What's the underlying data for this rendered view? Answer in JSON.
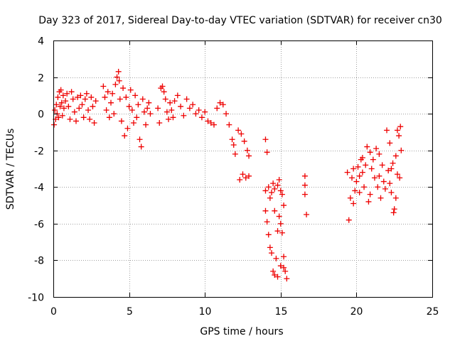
{
  "chart_data": {
    "type": "scatter",
    "title": "Day 323 of 2017, Sidereal Day-to-day VTEC variation (SDTVAR) for receiver cn30",
    "xlabel": "GPS time / hours",
    "ylabel": "SDTVAR / TECUs",
    "xlim": [
      0,
      25
    ],
    "ylim": [
      -10,
      4
    ],
    "xticks": [
      "0",
      "5",
      "10",
      "15",
      "20",
      "25"
    ],
    "yticks": [
      "4",
      "2",
      "0",
      "-2",
      "-4",
      "-6",
      "-8",
      "-10"
    ],
    "grid": true,
    "marker": "+",
    "color": "#ee0000",
    "series": [
      {
        "name": "SDTVAR",
        "points": [
          [
            0.05,
            -0.6
          ],
          [
            0.1,
            0.2
          ],
          [
            0.15,
            -0.3
          ],
          [
            0.2,
            0.5
          ],
          [
            0.25,
            0.0
          ],
          [
            0.3,
            0.9
          ],
          [
            0.35,
            -0.2
          ],
          [
            0.4,
            1.2
          ],
          [
            0.45,
            0.4
          ],
          [
            0.5,
            1.3
          ],
          [
            0.55,
            0.6
          ],
          [
            0.6,
            -0.1
          ],
          [
            0.65,
            1.0
          ],
          [
            0.7,
            0.3
          ],
          [
            0.8,
            0.7
          ],
          [
            0.9,
            1.1
          ],
          [
            1.0,
            0.4
          ],
          [
            1.1,
            -0.3
          ],
          [
            1.2,
            1.2
          ],
          [
            1.3,
            0.8
          ],
          [
            1.4,
            0.1
          ],
          [
            1.5,
            -0.4
          ],
          [
            1.6,
            0.9
          ],
          [
            1.7,
            0.3
          ],
          [
            1.8,
            1.0
          ],
          [
            1.9,
            0.5
          ],
          [
            2.0,
            -0.2
          ],
          [
            2.1,
            0.8
          ],
          [
            2.2,
            1.1
          ],
          [
            2.3,
            0.2
          ],
          [
            2.4,
            -0.3
          ],
          [
            2.5,
            0.9
          ],
          [
            2.6,
            0.4
          ],
          [
            2.7,
            -0.5
          ],
          [
            2.8,
            0.7
          ],
          [
            3.3,
            1.5
          ],
          [
            3.4,
            0.9
          ],
          [
            3.5,
            0.2
          ],
          [
            3.6,
            1.2
          ],
          [
            3.7,
            -0.2
          ],
          [
            3.8,
            0.6
          ],
          [
            3.9,
            1.1
          ],
          [
            4.0,
            0.0
          ],
          [
            4.1,
            1.6
          ],
          [
            4.2,
            2.0
          ],
          [
            4.3,
            2.3
          ],
          [
            4.35,
            1.8
          ],
          [
            4.4,
            0.8
          ],
          [
            4.5,
            -0.4
          ],
          [
            4.6,
            1.4
          ],
          [
            4.7,
            -1.2
          ],
          [
            4.8,
            0.9
          ],
          [
            4.9,
            -0.8
          ],
          [
            5.0,
            0.4
          ],
          [
            5.1,
            1.3
          ],
          [
            5.2,
            0.2
          ],
          [
            5.3,
            -0.5
          ],
          [
            5.4,
            1.0
          ],
          [
            5.5,
            -0.2
          ],
          [
            5.6,
            0.5
          ],
          [
            5.7,
            -1.4
          ],
          [
            5.8,
            -1.8
          ],
          [
            5.9,
            0.8
          ],
          [
            6.0,
            0.1
          ],
          [
            6.1,
            -0.6
          ],
          [
            6.2,
            0.3
          ],
          [
            6.3,
            0.6
          ],
          [
            6.4,
            0.0
          ],
          [
            6.9,
            0.3
          ],
          [
            7.0,
            -0.5
          ],
          [
            7.1,
            1.4
          ],
          [
            7.2,
            1.5
          ],
          [
            7.3,
            1.2
          ],
          [
            7.4,
            0.8
          ],
          [
            7.5,
            0.1
          ],
          [
            7.6,
            -0.3
          ],
          [
            7.7,
            0.6
          ],
          [
            7.8,
            0.2
          ],
          [
            7.9,
            -0.2
          ],
          [
            8.0,
            0.7
          ],
          [
            8.2,
            1.0
          ],
          [
            8.4,
            0.4
          ],
          [
            8.6,
            -0.1
          ],
          [
            8.8,
            0.8
          ],
          [
            9.0,
            0.3
          ],
          [
            9.2,
            0.5
          ],
          [
            9.4,
            0.0
          ],
          [
            9.6,
            0.2
          ],
          [
            9.8,
            -0.2
          ],
          [
            10.0,
            0.1
          ],
          [
            10.2,
            -0.4
          ],
          [
            10.4,
            -0.5
          ],
          [
            10.6,
            -0.6
          ],
          [
            10.8,
            0.3
          ],
          [
            11.0,
            0.6
          ],
          [
            11.2,
            0.5
          ],
          [
            11.4,
            0.0
          ],
          [
            11.6,
            -0.6
          ],
          [
            11.8,
            -1.4
          ],
          [
            11.9,
            -1.7
          ],
          [
            12.0,
            -2.2
          ],
          [
            12.2,
            -0.9
          ],
          [
            12.4,
            -1.1
          ],
          [
            12.6,
            -1.5
          ],
          [
            12.8,
            -2.0
          ],
          [
            12.9,
            -2.3
          ],
          [
            12.3,
            -3.6
          ],
          [
            12.5,
            -3.3
          ],
          [
            12.7,
            -3.5
          ],
          [
            12.9,
            -3.4
          ],
          [
            14.0,
            -1.4
          ],
          [
            14.1,
            -2.1
          ],
          [
            14.0,
            -4.2
          ],
          [
            14.2,
            -4.0
          ],
          [
            14.3,
            -4.6
          ],
          [
            14.4,
            -4.3
          ],
          [
            14.5,
            -3.8
          ],
          [
            14.6,
            -4.1
          ],
          [
            14.8,
            -3.9
          ],
          [
            15.0,
            -4.2
          ],
          [
            15.1,
            -4.4
          ],
          [
            14.0,
            -5.3
          ],
          [
            14.1,
            -5.9
          ],
          [
            14.2,
            -6.6
          ],
          [
            14.3,
            -7.3
          ],
          [
            14.4,
            -7.6
          ],
          [
            14.5,
            -8.6
          ],
          [
            14.6,
            -8.8
          ],
          [
            14.7,
            -7.9
          ],
          [
            14.8,
            -6.4
          ],
          [
            14.9,
            -5.6
          ],
          [
            15.0,
            -6.0
          ],
          [
            15.1,
            -6.5
          ],
          [
            15.2,
            -7.8
          ],
          [
            15.3,
            -8.6
          ],
          [
            15.4,
            -9.0
          ],
          [
            14.8,
            -8.9
          ],
          [
            15.0,
            -8.3
          ],
          [
            15.2,
            -8.4
          ],
          [
            14.6,
            -5.3
          ],
          [
            14.9,
            -3.6
          ],
          [
            15.2,
            -5.0
          ],
          [
            16.6,
            -3.4
          ],
          [
            16.6,
            -3.9
          ],
          [
            16.6,
            -4.4
          ],
          [
            16.7,
            -5.5
          ],
          [
            19.4,
            -3.2
          ],
          [
            19.5,
            -5.8
          ],
          [
            19.6,
            -4.6
          ],
          [
            19.7,
            -3.5
          ],
          [
            19.8,
            -3.0
          ],
          [
            19.9,
            -4.2
          ],
          [
            20.0,
            -3.7
          ],
          [
            20.1,
            -2.9
          ],
          [
            20.2,
            -3.4
          ],
          [
            20.3,
            -2.5
          ],
          [
            20.4,
            -3.2
          ],
          [
            20.5,
            -4.0
          ],
          [
            20.6,
            -2.8
          ],
          [
            20.7,
            -1.8
          ],
          [
            20.8,
            -4.8
          ],
          [
            20.9,
            -4.4
          ],
          [
            21.0,
            -3.0
          ],
          [
            21.1,
            -2.5
          ],
          [
            21.2,
            -3.5
          ],
          [
            21.3,
            -1.9
          ],
          [
            21.4,
            -4.0
          ],
          [
            21.5,
            -3.4
          ],
          [
            21.6,
            -4.6
          ],
          [
            21.7,
            -2.8
          ],
          [
            21.8,
            -3.7
          ],
          [
            22.0,
            -0.9
          ],
          [
            22.1,
            -3.1
          ],
          [
            22.2,
            -1.6
          ],
          [
            22.3,
            -4.3
          ],
          [
            22.4,
            -2.7
          ],
          [
            22.5,
            -5.2
          ],
          [
            22.6,
            -4.6
          ],
          [
            22.7,
            -3.3
          ],
          [
            22.8,
            -1.2
          ],
          [
            22.9,
            -0.7
          ],
          [
            22.95,
            -2.0
          ],
          [
            22.7,
            -0.9
          ],
          [
            22.85,
            -3.5
          ],
          [
            22.6,
            -2.3
          ],
          [
            22.3,
            -3.0
          ],
          [
            21.9,
            -4.1
          ],
          [
            21.5,
            -2.2
          ],
          [
            20.9,
            -2.1
          ],
          [
            20.4,
            -2.4
          ],
          [
            19.8,
            -4.9
          ],
          [
            20.2,
            -4.3
          ],
          [
            22.45,
            -5.4
          ],
          [
            22.2,
            -3.8
          ]
        ]
      }
    ]
  }
}
